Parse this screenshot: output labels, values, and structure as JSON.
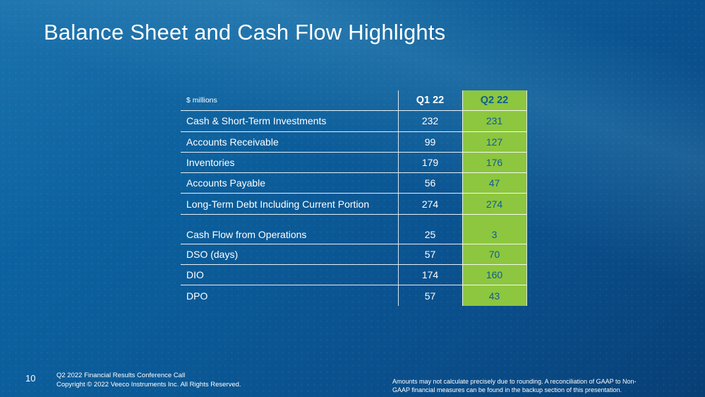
{
  "slide": {
    "title": "Balance Sheet and Cash Flow Highlights",
    "page_number": "10"
  },
  "table": {
    "unit_label": "$ millions",
    "col_q1": "Q1 22",
    "col_q2": "Q2 22",
    "highlight_color": "#8dc63f",
    "rows": [
      {
        "label": "Cash & Short-Term Investments",
        "q1": "232",
        "q2": "231"
      },
      {
        "label": "Accounts Receivable",
        "q1": "99",
        "q2": "127"
      },
      {
        "label": "Inventories",
        "q1": "179",
        "q2": "176"
      },
      {
        "label": "Accounts Payable",
        "q1": "56",
        "q2": "47"
      },
      {
        "label": "Long-Term Debt Including Current Portion",
        "q1": "274",
        "q2": "274"
      },
      {
        "label": "Cash Flow from Operations",
        "q1": "25",
        "q2": "3"
      },
      {
        "label": "DSO (days)",
        "q1": "57",
        "q2": "70"
      },
      {
        "label": "DIO",
        "q1": "174",
        "q2": "160"
      },
      {
        "label": "DPO",
        "q1": "57",
        "q2": "43"
      }
    ]
  },
  "footer": {
    "line1": "Q2 2022 Financial Results Conference Call",
    "line2": "Copyright © 2022 Veeco Instruments Inc. All Rights Reserved.",
    "note_line1": "Amounts may not calculate precisely due to rounding.  A reconciliation of GAAP to Non-",
    "note_line2": "GAAP financial measures can be found in the backup section of this presentation."
  }
}
